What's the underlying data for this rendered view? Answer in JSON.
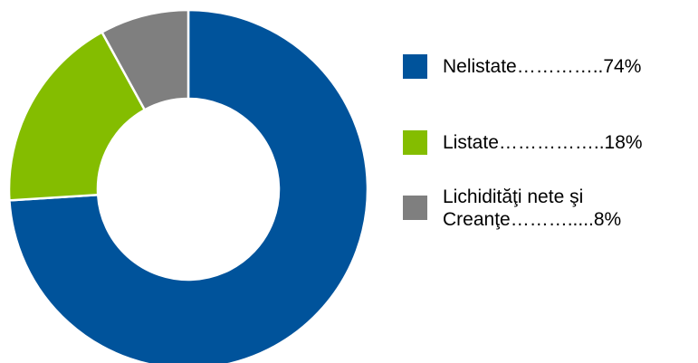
{
  "chart_data": {
    "type": "pie",
    "donut": true,
    "categories": [
      "Nelistate",
      "Listate",
      "Lichidităţi nete şi Creanţe"
    ],
    "values": [
      74,
      18,
      8
    ],
    "colors": [
      "#00539b",
      "#84bd00",
      "#7f7f7f"
    ],
    "legend_placement": "right",
    "legend": [
      "Nelistate…………..74%",
      "Listate……………..18%",
      "Lichidităţi nete şi\nCreanţe……….....8%"
    ]
  }
}
